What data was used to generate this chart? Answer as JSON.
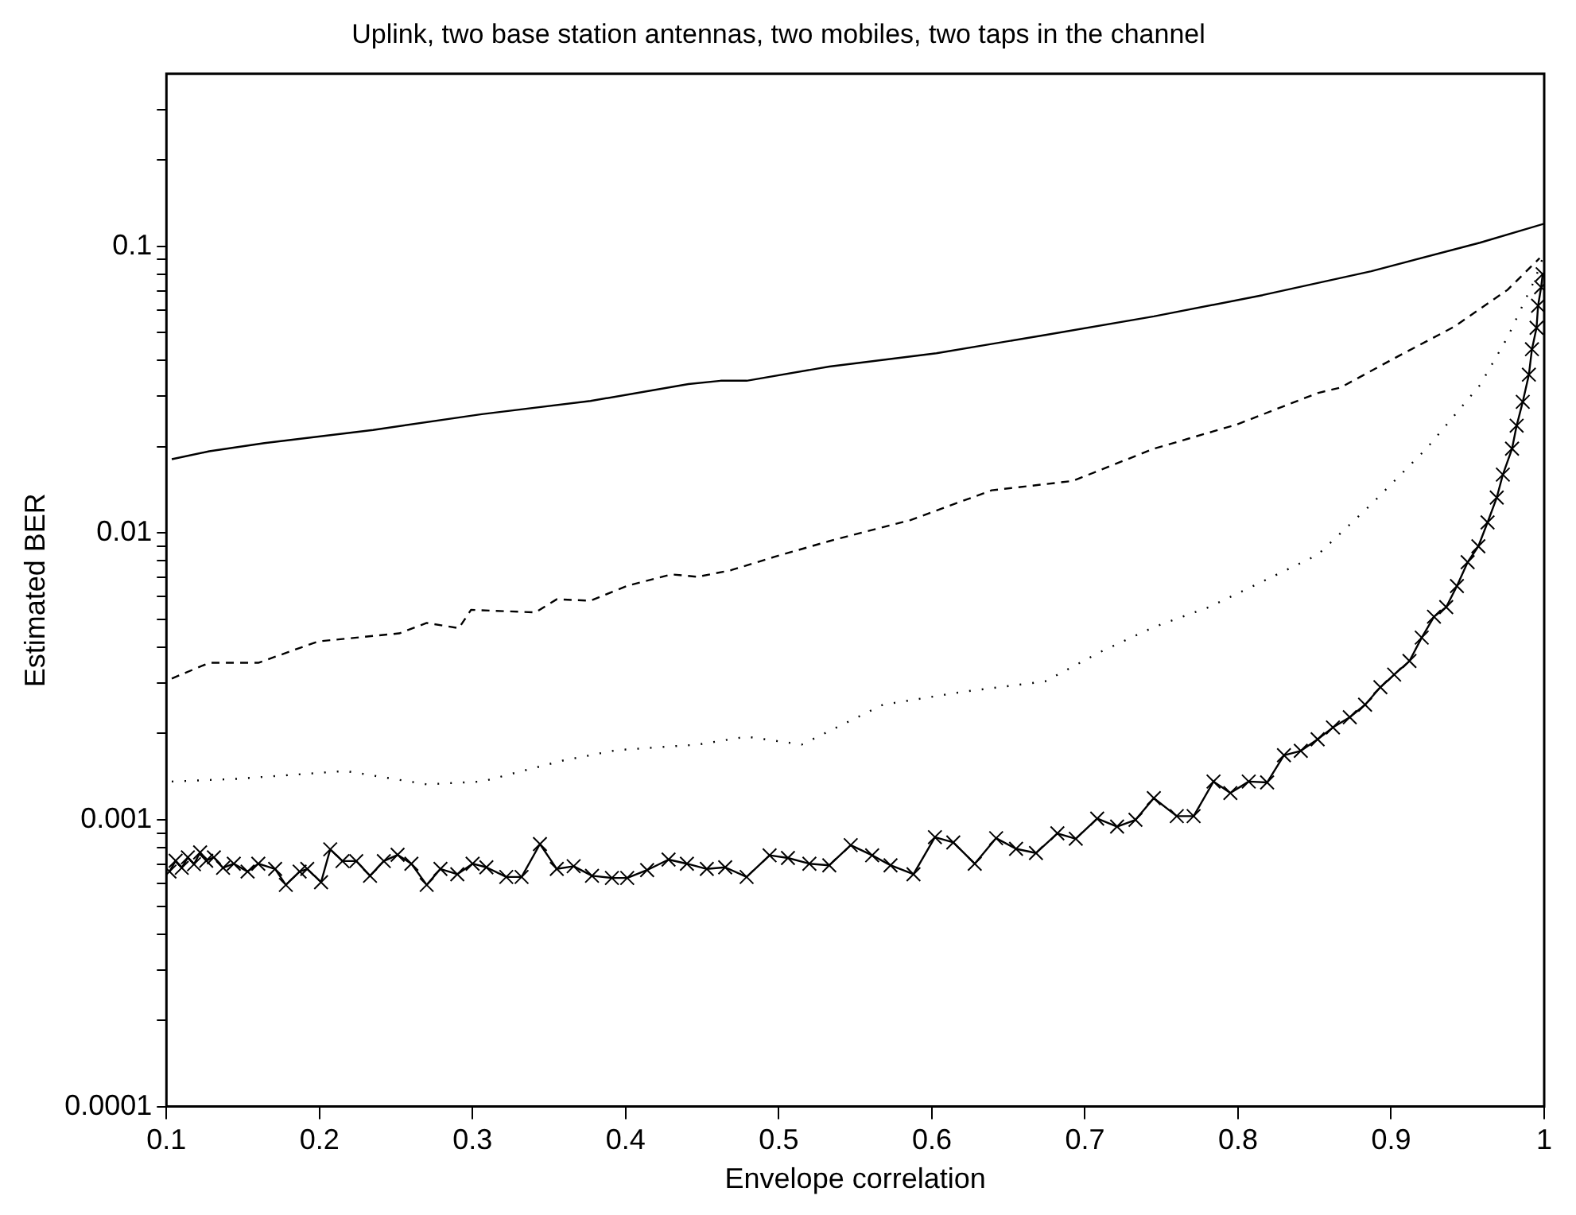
{
  "chart_data": {
    "type": "line",
    "title": "Uplink, two base station antennas, two mobiles, two taps in the channel",
    "xlabel": "Envelope correlation",
    "ylabel": "Estimated BER",
    "log": "y",
    "grid": false,
    "legend": false,
    "xlim": [
      0.1,
      1
    ],
    "xticks": [
      0.1,
      0.2,
      0.3,
      0.4,
      0.5,
      0.6,
      0.7,
      0.8,
      0.9,
      1
    ],
    "ylim": [
      0.0001,
      0.4
    ],
    "yticks": [
      0.0001,
      {
        "value": 0.0002,
        "label": null
      },
      {
        "value": 0.0003,
        "label": null
      },
      {
        "value": 0.0004,
        "label": null
      },
      {
        "value": 0.0005,
        "label": null
      },
      {
        "value": 0.0006,
        "label": null
      },
      {
        "value": 0.0007,
        "label": null
      },
      {
        "value": 0.0008,
        "label": null
      },
      {
        "value": 0.0009,
        "label": null
      },
      0.001,
      {
        "value": 0.002,
        "label": null
      },
      {
        "value": 0.003,
        "label": null
      },
      {
        "value": 0.004,
        "label": null
      },
      {
        "value": 0.005,
        "label": null
      },
      {
        "value": 0.006,
        "label": null
      },
      {
        "value": 0.007,
        "label": null
      },
      {
        "value": 0.008,
        "label": null
      },
      {
        "value": 0.009,
        "label": null
      },
      0.01,
      {
        "value": 0.02,
        "label": null
      },
      {
        "value": 0.03,
        "label": null
      },
      {
        "value": 0.04,
        "label": null
      },
      {
        "value": 0.05,
        "label": null
      },
      {
        "value": 0.06,
        "label": null
      },
      {
        "value": 0.07,
        "label": null
      },
      {
        "value": 0.08,
        "label": null
      },
      {
        "value": 0.09,
        "label": null
      },
      0.1,
      {
        "value": 0.2,
        "label": null
      },
      {
        "value": 0.3,
        "label": null
      }
    ],
    "series": [
      {
        "color": "#000000",
        "line_style": "solid",
        "marker": "none",
        "x": [
          0.1035,
          0.128,
          0.164,
          0.235,
          0.306,
          0.377,
          0.441,
          0.462,
          0.479,
          0.533,
          0.603,
          0.675,
          0.745,
          0.816,
          0.887,
          0.958,
          1.0
        ],
        "values": [
          0.0181,
          0.0193,
          0.0206,
          0.0229,
          0.026,
          0.0289,
          0.0331,
          0.034,
          0.034,
          0.0381,
          0.0424,
          0.0492,
          0.057,
          0.0676,
          0.0819,
          0.103,
          0.12
        ]
      },
      {
        "color": "#000000",
        "line_style": "dashed",
        "marker": "none",
        "x": [
          0.1035,
          0.128,
          0.16,
          0.199,
          0.252,
          0.27,
          0.291,
          0.299,
          0.341,
          0.355,
          0.377,
          0.401,
          0.43,
          0.447,
          0.469,
          0.497,
          0.533,
          0.586,
          0.639,
          0.692,
          0.745,
          0.799,
          0.852,
          0.867,
          0.905,
          0.941,
          0.976,
          0.997
        ],
        "values": [
          0.00311,
          0.00353,
          0.00353,
          0.00419,
          0.00447,
          0.00486,
          0.00466,
          0.0054,
          0.00529,
          0.00588,
          0.00581,
          0.00655,
          0.00718,
          0.00704,
          0.00743,
          0.00826,
          0.00938,
          0.0111,
          0.0141,
          0.0152,
          0.0197,
          0.0239,
          0.0308,
          0.0322,
          0.0415,
          0.0524,
          0.0705,
          0.091
        ]
      },
      {
        "color": "#000000",
        "line_style": "dotted",
        "marker": "none",
        "x": [
          0.1035,
          0.146,
          0.217,
          0.27,
          0.306,
          0.359,
          0.394,
          0.447,
          0.479,
          0.515,
          0.568,
          0.621,
          0.674,
          0.71,
          0.745,
          0.781,
          0.817,
          0.852,
          0.887,
          0.923,
          0.958,
          0.976,
          0.994,
          0.999
        ],
        "values": [
          0.00136,
          0.00139,
          0.00148,
          0.00133,
          0.00136,
          0.00161,
          0.00175,
          0.00183,
          0.00195,
          0.00183,
          0.00252,
          0.0028,
          0.00304,
          0.00385,
          0.0047,
          0.00552,
          0.00682,
          0.0084,
          0.0126,
          0.0197,
          0.0328,
          0.0481,
          0.0768,
          0.091
        ]
      },
      {
        "color": "#000000",
        "line_style": "solid",
        "marker": "cross",
        "x": [
          0.102,
          0.106,
          0.11,
          0.114,
          0.118,
          0.122,
          0.126,
          0.131,
          0.137,
          0.144,
          0.153,
          0.16,
          0.171,
          0.178,
          0.187,
          0.192,
          0.201,
          0.207,
          0.215,
          0.224,
          0.233,
          0.242,
          0.251,
          0.26,
          0.27,
          0.279,
          0.29,
          0.3,
          0.309,
          0.322,
          0.332,
          0.344,
          0.355,
          0.366,
          0.378,
          0.391,
          0.401,
          0.414,
          0.428,
          0.44,
          0.453,
          0.465,
          0.479,
          0.494,
          0.506,
          0.52,
          0.533,
          0.547,
          0.561,
          0.573,
          0.588,
          0.602,
          0.614,
          0.628,
          0.642,
          0.655,
          0.668,
          0.682,
          0.694,
          0.708,
          0.721,
          0.733,
          0.745,
          0.76,
          0.771,
          0.784,
          0.795,
          0.807,
          0.819,
          0.83,
          0.841,
          0.852,
          0.862,
          0.873,
          0.883,
          0.893,
          0.902,
          0.912,
          0.92,
          0.928,
          0.936,
          0.943,
          0.95,
          0.957,
          0.963,
          0.969,
          0.973,
          0.979,
          0.982,
          0.986,
          0.99,
          0.992,
          0.995,
          0.996,
          0.998,
          0.999
        ],
        "values": [
          0.00066,
          0.00072,
          0.00068,
          0.00074,
          0.0007,
          0.00077,
          0.00072,
          0.00074,
          0.00068,
          0.000703,
          0.00066,
          0.000703,
          0.000674,
          0.000593,
          0.00066,
          0.000674,
          0.000606,
          0.000789,
          0.000718,
          0.000718,
          0.000638,
          0.000718,
          0.000755,
          0.000703,
          0.000593,
          0.000674,
          0.000646,
          0.000703,
          0.000683,
          0.000632,
          0.000632,
          0.000823,
          0.000674,
          0.000689,
          0.000638,
          0.000627,
          0.000627,
          0.000668,
          0.000727,
          0.000703,
          0.000674,
          0.000683,
          0.000632,
          0.000752,
          0.000736,
          0.000703,
          0.000694,
          0.000816,
          0.000752,
          0.000694,
          0.000646,
          0.00087,
          0.000834,
          0.000703,
          0.000863,
          0.000792,
          0.000766,
          0.000897,
          0.000859,
          0.00101,
          0.000947,
          0.001,
          0.00119,
          0.00103,
          0.00103,
          0.00136,
          0.00124,
          0.00136,
          0.00135,
          0.00168,
          0.00174,
          0.00191,
          0.0021,
          0.00228,
          0.00252,
          0.0029,
          0.00321,
          0.00358,
          0.00432,
          0.00511,
          0.00552,
          0.00654,
          0.00792,
          0.009,
          0.0109,
          0.0133,
          0.016,
          0.0197,
          0.0237,
          0.0287,
          0.0357,
          0.0438,
          0.052,
          0.0621,
          0.072,
          0.08
        ]
      }
    ]
  }
}
